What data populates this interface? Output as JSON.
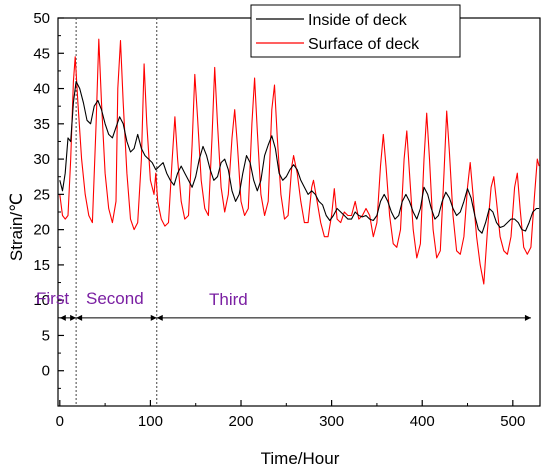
{
  "chart_data": {
    "type": "line",
    "title": "",
    "xlabel": "Time/Hour",
    "ylabel": "Strain/℃",
    "xlim": [
      -2,
      530
    ],
    "ylim": [
      -5,
      50
    ],
    "xticks": [
      0,
      100,
      200,
      300,
      400,
      500
    ],
    "yticks": [
      0,
      5,
      10,
      15,
      20,
      25,
      30,
      35,
      40,
      45,
      50
    ],
    "grid": false,
    "legend_position": "top-right",
    "series": [
      {
        "name": "Inside of deck",
        "color": "#000000",
        "points": [
          [
            0,
            27
          ],
          [
            3,
            25.5
          ],
          [
            6,
            28
          ],
          [
            9,
            33
          ],
          [
            12,
            32.5
          ],
          [
            15,
            38
          ],
          [
            18,
            41
          ],
          [
            22,
            40
          ],
          [
            26,
            38
          ],
          [
            30,
            35.5
          ],
          [
            34,
            35
          ],
          [
            38,
            37.5
          ],
          [
            42,
            38.3
          ],
          [
            46,
            37
          ],
          [
            50,
            35
          ],
          [
            54,
            33.5
          ],
          [
            58,
            33
          ],
          [
            62,
            34.5
          ],
          [
            66,
            36
          ],
          [
            70,
            35
          ],
          [
            74,
            32.5
          ],
          [
            78,
            31
          ],
          [
            82,
            31.5
          ],
          [
            86,
            33.5
          ],
          [
            90,
            31.5
          ],
          [
            94,
            30.5
          ],
          [
            98,
            30
          ],
          [
            102,
            29.5
          ],
          [
            106,
            28.5
          ],
          [
            110,
            29
          ],
          [
            114,
            29.5
          ],
          [
            118,
            28
          ],
          [
            122,
            27
          ],
          [
            126,
            26.3
          ],
          [
            130,
            28
          ],
          [
            134,
            29
          ],
          [
            138,
            28
          ],
          [
            142,
            27
          ],
          [
            146,
            26
          ],
          [
            150,
            27.5
          ],
          [
            154,
            30
          ],
          [
            158,
            31.8
          ],
          [
            162,
            30.5
          ],
          [
            166,
            28.5
          ],
          [
            170,
            27
          ],
          [
            174,
            27.5
          ],
          [
            178,
            29.5
          ],
          [
            182,
            30
          ],
          [
            186,
            28.5
          ],
          [
            190,
            25.5
          ],
          [
            194,
            24
          ],
          [
            198,
            25
          ],
          [
            202,
            28
          ],
          [
            206,
            30.5
          ],
          [
            210,
            29.5
          ],
          [
            214,
            27
          ],
          [
            218,
            25.5
          ],
          [
            222,
            27
          ],
          [
            226,
            30.5
          ],
          [
            230,
            32
          ],
          [
            234,
            33.3
          ],
          [
            238,
            31.5
          ],
          [
            242,
            28
          ],
          [
            246,
            27
          ],
          [
            250,
            27.5
          ],
          [
            254,
            28.5
          ],
          [
            258,
            29.2
          ],
          [
            262,
            28.5
          ],
          [
            266,
            27
          ],
          [
            270,
            26
          ],
          [
            274,
            25
          ],
          [
            278,
            25.5
          ],
          [
            282,
            25
          ],
          [
            286,
            24
          ],
          [
            290,
            23.5
          ],
          [
            294,
            22
          ],
          [
            298,
            21.3
          ],
          [
            302,
            22
          ],
          [
            306,
            23
          ],
          [
            310,
            22.5
          ],
          [
            314,
            22
          ],
          [
            318,
            21.5
          ],
          [
            322,
            21.5
          ],
          [
            326,
            22.5
          ],
          [
            330,
            22
          ],
          [
            334,
            21.8
          ],
          [
            338,
            22
          ],
          [
            342,
            21.5
          ],
          [
            346,
            21.3
          ],
          [
            350,
            22
          ],
          [
            354,
            24
          ],
          [
            358,
            25
          ],
          [
            362,
            24
          ],
          [
            366,
            22.5
          ],
          [
            370,
            21.5
          ],
          [
            374,
            22
          ],
          [
            378,
            24
          ],
          [
            382,
            25
          ],
          [
            386,
            24
          ],
          [
            390,
            22.5
          ],
          [
            394,
            21.5
          ],
          [
            398,
            23
          ],
          [
            402,
            26
          ],
          [
            406,
            25
          ],
          [
            410,
            23
          ],
          [
            414,
            21.5
          ],
          [
            418,
            22
          ],
          [
            422,
            24
          ],
          [
            426,
            25.3
          ],
          [
            430,
            24.5
          ],
          [
            434,
            23
          ],
          [
            438,
            22
          ],
          [
            442,
            22.5
          ],
          [
            446,
            24
          ],
          [
            450,
            25.8
          ],
          [
            454,
            24.5
          ],
          [
            458,
            22
          ],
          [
            462,
            20
          ],
          [
            466,
            19.5
          ],
          [
            470,
            21
          ],
          [
            474,
            23
          ],
          [
            478,
            22.5
          ],
          [
            482,
            21
          ],
          [
            486,
            20.3
          ],
          [
            490,
            20.5
          ],
          [
            494,
            21
          ],
          [
            498,
            21.5
          ],
          [
            502,
            21.5
          ],
          [
            506,
            21
          ],
          [
            510,
            20
          ],
          [
            514,
            19.8
          ],
          [
            518,
            21
          ],
          [
            522,
            22.5
          ],
          [
            526,
            23
          ],
          [
            529,
            23
          ]
        ]
      },
      {
        "name": "Surface of deck",
        "color": "#ff0000",
        "points": [
          [
            0,
            25
          ],
          [
            3,
            22
          ],
          [
            6,
            21.5
          ],
          [
            9,
            22
          ],
          [
            12,
            30
          ],
          [
            15,
            41
          ],
          [
            17,
            44.5
          ],
          [
            20,
            38
          ],
          [
            24,
            30
          ],
          [
            28,
            25
          ],
          [
            32,
            22
          ],
          [
            36,
            21
          ],
          [
            40,
            35
          ],
          [
            43,
            47
          ],
          [
            46,
            38
          ],
          [
            50,
            28
          ],
          [
            54,
            23
          ],
          [
            58,
            21
          ],
          [
            62,
            24
          ],
          [
            64,
            40
          ],
          [
            67,
            46.8
          ],
          [
            70,
            38
          ],
          [
            74,
            28
          ],
          [
            78,
            21.5
          ],
          [
            82,
            20
          ],
          [
            86,
            21
          ],
          [
            90,
            30
          ],
          [
            93,
            43.5
          ],
          [
            96,
            35
          ],
          [
            100,
            27
          ],
          [
            104,
            25
          ],
          [
            106,
            28
          ],
          [
            108,
            24
          ],
          [
            112,
            21.5
          ],
          [
            116,
            20.5
          ],
          [
            120,
            21
          ],
          [
            124,
            30
          ],
          [
            127,
            36
          ],
          [
            130,
            30
          ],
          [
            134,
            24
          ],
          [
            138,
            21.5
          ],
          [
            142,
            22
          ],
          [
            146,
            32
          ],
          [
            149,
            42
          ],
          [
            152,
            36
          ],
          [
            156,
            27
          ],
          [
            160,
            23
          ],
          [
            164,
            22
          ],
          [
            168,
            33
          ],
          [
            171,
            43
          ],
          [
            174,
            35
          ],
          [
            178,
            26
          ],
          [
            182,
            22.5
          ],
          [
            186,
            25
          ],
          [
            190,
            33
          ],
          [
            193,
            37
          ],
          [
            196,
            32
          ],
          [
            200,
            24
          ],
          [
            204,
            22
          ],
          [
            208,
            23
          ],
          [
            212,
            35
          ],
          [
            215,
            41.5
          ],
          [
            218,
            34
          ],
          [
            222,
            25
          ],
          [
            226,
            22
          ],
          [
            230,
            24
          ],
          [
            234,
            37
          ],
          [
            237,
            40.5
          ],
          [
            240,
            33
          ],
          [
            244,
            25
          ],
          [
            248,
            21.5
          ],
          [
            252,
            22
          ],
          [
            256,
            29
          ],
          [
            258,
            30.5
          ],
          [
            262,
            28
          ],
          [
            266,
            24
          ],
          [
            270,
            21
          ],
          [
            274,
            21
          ],
          [
            278,
            26
          ],
          [
            280,
            27
          ],
          [
            284,
            24
          ],
          [
            288,
            21
          ],
          [
            292,
            19
          ],
          [
            296,
            19
          ],
          [
            300,
            22
          ],
          [
            303,
            25.8
          ],
          [
            306,
            21.5
          ],
          [
            310,
            21
          ],
          [
            314,
            22.5
          ],
          [
            318,
            22
          ],
          [
            322,
            22
          ],
          [
            326,
            24
          ],
          [
            330,
            21.5
          ],
          [
            334,
            22
          ],
          [
            338,
            23
          ],
          [
            342,
            22
          ],
          [
            346,
            19
          ],
          [
            350,
            21
          ],
          [
            354,
            29
          ],
          [
            357,
            33.5
          ],
          [
            360,
            29
          ],
          [
            364,
            22
          ],
          [
            368,
            18
          ],
          [
            372,
            17.5
          ],
          [
            376,
            20
          ],
          [
            380,
            30
          ],
          [
            383,
            34
          ],
          [
            386,
            28
          ],
          [
            390,
            20
          ],
          [
            394,
            16
          ],
          [
            398,
            18
          ],
          [
            402,
            30
          ],
          [
            405,
            36.5
          ],
          [
            408,
            30
          ],
          [
            412,
            20
          ],
          [
            416,
            16
          ],
          [
            420,
            17
          ],
          [
            424,
            28
          ],
          [
            427,
            36.8
          ],
          [
            430,
            31
          ],
          [
            434,
            22
          ],
          [
            438,
            17
          ],
          [
            442,
            16.5
          ],
          [
            446,
            19
          ],
          [
            450,
            26
          ],
          [
            453,
            29.5
          ],
          [
            456,
            25
          ],
          [
            460,
            19
          ],
          [
            464,
            15
          ],
          [
            468,
            12.3
          ],
          [
            472,
            20
          ],
          [
            476,
            26
          ],
          [
            479,
            27.5
          ],
          [
            482,
            24
          ],
          [
            486,
            19
          ],
          [
            490,
            17
          ],
          [
            494,
            16.5
          ],
          [
            498,
            19
          ],
          [
            502,
            26
          ],
          [
            505,
            28
          ],
          [
            508,
            23
          ],
          [
            512,
            17.5
          ],
          [
            516,
            16.5
          ],
          [
            520,
            17.5
          ],
          [
            524,
            25
          ],
          [
            527,
            30
          ],
          [
            529,
            29
          ]
        ]
      }
    ],
    "phase_lines": [
      18,
      107
    ],
    "annotations": {
      "first": "First",
      "second": "Second",
      "third": "Third",
      "color": "#7a1fa2",
      "arrow_y": 7.5,
      "ranges": [
        [
          0,
          18
        ],
        [
          18,
          107
        ],
        [
          107,
          520
        ]
      ]
    }
  }
}
